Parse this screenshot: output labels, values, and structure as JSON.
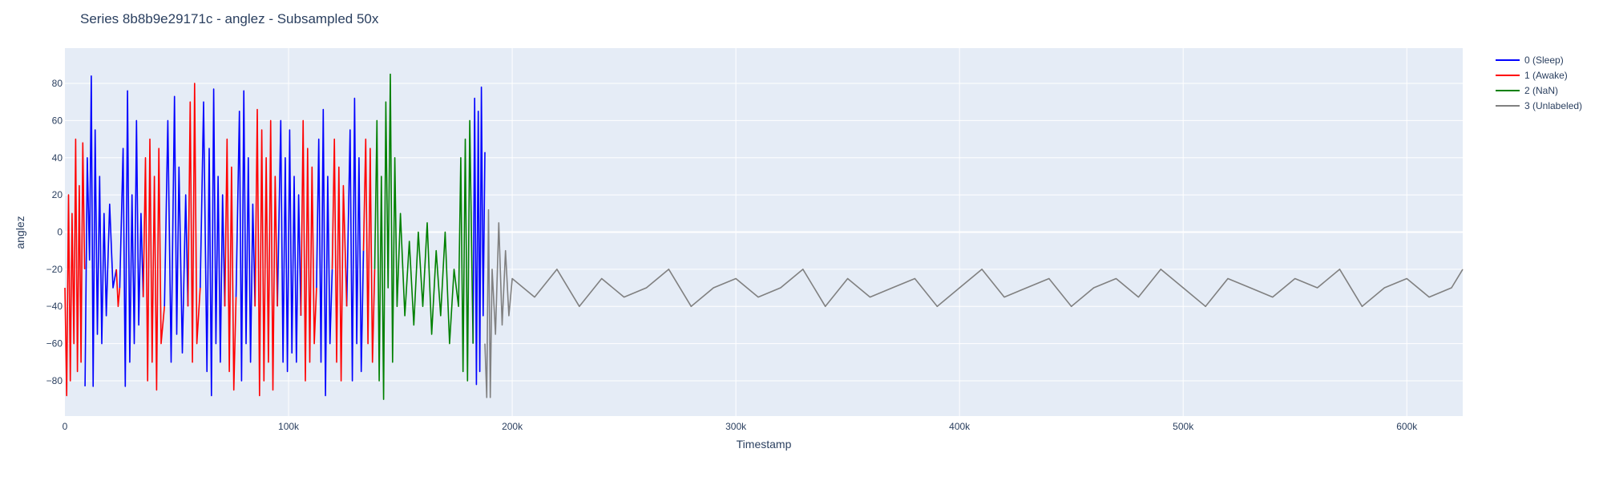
{
  "chart_data": {
    "type": "line",
    "title": "Series 8b8b9e29171c - anglez - Subsampled 50x",
    "xlabel": "Timestamp",
    "ylabel": "anglez",
    "xlim": [
      0,
      625000
    ],
    "ylim": [
      -99,
      99
    ],
    "x_ticks": [
      0,
      100000,
      200000,
      300000,
      400000,
      500000,
      600000
    ],
    "x_tick_labels": [
      "0",
      "100k",
      "200k",
      "300k",
      "400k",
      "500k",
      "600k"
    ],
    "y_ticks": [
      -80,
      -60,
      -40,
      -20,
      0,
      20,
      40,
      60,
      80
    ],
    "y_tick_labels": [
      "−80",
      "−60",
      "−40",
      "−20",
      "0",
      "20",
      "40",
      "60",
      "80"
    ],
    "grid": true,
    "legend_position": "top-right",
    "series": [
      {
        "name": "0 (Sleep)",
        "color": "#0000ff",
        "segments": [
          {
            "x": [
              9000,
              10000,
              11000,
              11800,
              12600,
              13500,
              14500,
              15500,
              16500,
              17500,
              18500,
              20000,
              21500,
              23000
            ],
            "y": [
              -83,
              40,
              -15,
              84,
              -83,
              55,
              -55,
              30,
              -60,
              10,
              -45,
              15,
              -30,
              -20
            ]
          },
          {
            "x": [
              24500,
              26000,
              27000,
              28000,
              29000,
              30000,
              31000,
              32000,
              33000,
              34000,
              35000
            ],
            "y": [
              -30,
              45,
              -83,
              76,
              -70,
              20,
              -60,
              60,
              -50,
              10,
              -35
            ]
          },
          {
            "x": [
              44500,
              46000,
              47500,
              49000,
              50000,
              51000,
              52500,
              54000,
              55000
            ],
            "y": [
              -40,
              60,
              -70,
              73,
              -55,
              35,
              -65,
              20,
              -40
            ]
          },
          {
            "x": [
              60500,
              62000,
              63500,
              64500,
              65500,
              66500,
              67500,
              68500,
              69500,
              70500,
              71500
            ],
            "y": [
              -30,
              70,
              -75,
              45,
              -88,
              77,
              -60,
              30,
              -70,
              20,
              -40
            ]
          },
          {
            "x": [
              76500,
              78000,
              79000,
              80000,
              81000,
              82000,
              83000,
              84000,
              85000
            ],
            "y": [
              -35,
              65,
              -80,
              76,
              -60,
              40,
              -70,
              15,
              -40
            ]
          },
          {
            "x": [
              95000,
              96500,
              97500,
              98500,
              99500,
              100500,
              101500,
              102500,
              103500,
              104500,
              105500
            ],
            "y": [
              -40,
              60,
              -70,
              40,
              -75,
              55,
              -65,
              30,
              -70,
              20,
              -45
            ]
          },
          {
            "x": [
              112500,
              113500,
              114500,
              115500,
              116500,
              117500,
              118500,
              119500
            ],
            "y": [
              -30,
              50,
              -70,
              66,
              -88,
              30,
              -60,
              -20
            ]
          },
          {
            "x": [
              126000,
              127500,
              128500,
              129500,
              130500,
              131500,
              132500,
              133500
            ],
            "y": [
              -40,
              55,
              -80,
              72,
              -60,
              40,
              -75,
              -10
            ]
          },
          {
            "x": [
              182500,
              183200,
              184000,
              184800,
              185500,
              186200,
              187000,
              187800
            ],
            "y": [
              -60,
              72,
              -82,
              65,
              -75,
              78,
              -45,
              43
            ]
          }
        ]
      },
      {
        "name": "1 (Awake)",
        "color": "#ff0000",
        "segments": [
          {
            "x": [
              0,
              800,
              1600,
              2400,
              3200,
              4000,
              4800,
              5600,
              6400,
              7200,
              8000,
              8800
            ],
            "y": [
              -30,
              -88,
              20,
              -80,
              10,
              -60,
              50,
              -75,
              25,
              -70,
              48,
              -20
            ]
          },
          {
            "x": [
              23000,
              23800,
              24500
            ],
            "y": [
              -20,
              -40,
              -30
            ]
          },
          {
            "x": [
              35000,
              36000,
              37000,
              38000,
              39000,
              40000,
              41000,
              42000,
              43000,
              44500
            ],
            "y": [
              -35,
              40,
              -80,
              50,
              -70,
              30,
              -85,
              45,
              -60,
              -40
            ]
          },
          {
            "x": [
              55000,
              56000,
              57000,
              58000,
              59000,
              60500
            ],
            "y": [
              -40,
              70,
              -70,
              80,
              -60,
              -30
            ]
          },
          {
            "x": [
              71500,
              72500,
              73500,
              74500,
              75500,
              76500
            ],
            "y": [
              -40,
              50,
              -75,
              35,
              -85,
              -35
            ]
          },
          {
            "x": [
              85000,
              86000,
              87000,
              88000,
              89000,
              90000,
              91000,
              92000,
              93000,
              94000,
              95000
            ],
            "y": [
              -40,
              66,
              -88,
              55,
              -80,
              40,
              -70,
              60,
              -85,
              30,
              -40
            ]
          },
          {
            "x": [
              105500,
              106500,
              107500,
              108500,
              109500,
              110500,
              111500,
              112500
            ],
            "y": [
              -45,
              60,
              -80,
              45,
              -70,
              35,
              -60,
              -30
            ]
          },
          {
            "x": [
              119500,
              120500,
              121500,
              122500,
              123500,
              124500,
              126000
            ],
            "y": [
              -20,
              50,
              -70,
              35,
              -80,
              25,
              -40
            ]
          },
          {
            "x": [
              133500,
              134500,
              135500,
              136500,
              137500,
              138500
            ],
            "y": [
              -10,
              50,
              -60,
              45,
              -70,
              -20
            ]
          }
        ]
      },
      {
        "name": "2 (NaN)",
        "color": "#008000",
        "segments": [
          {
            "x": [
              138500,
              139500,
              140500,
              141500,
              142500,
              143500,
              144500,
              145500,
              146500,
              147500,
              148500,
              150000,
              152000,
              154000,
              156000,
              158000,
              160000,
              162000,
              164000,
              166000,
              168000,
              170000,
              172000,
              174000,
              176000,
              177000,
              178000,
              179000,
              180000,
              181000,
              182500
            ],
            "y": [
              -20,
              60,
              -80,
              30,
              -90,
              70,
              -30,
              85,
              -70,
              40,
              -40,
              10,
              -45,
              -5,
              -50,
              0,
              -40,
              5,
              -55,
              -10,
              -45,
              0,
              -60,
              -20,
              -40,
              40,
              -75,
              50,
              -80,
              60,
              -60
            ]
          }
        ]
      },
      {
        "name": "3 (Unlabeled)",
        "color": "#808080",
        "segments": [
          {
            "x": [
              187800,
              188600,
              189400,
              190200,
              191000,
              192500,
              194000,
              195500,
              197000,
              198500,
              200000,
              210000,
              220000,
              230000,
              240000,
              250000,
              260000,
              270000,
              280000,
              290000,
              300000,
              310000,
              320000,
              330000,
              340000,
              350000,
              360000,
              370000,
              380000,
              390000,
              400000,
              410000,
              420000,
              430000,
              440000,
              450000,
              460000,
              470000,
              480000,
              490000,
              500000,
              510000,
              520000,
              530000,
              540000,
              550000,
              560000,
              570000,
              580000,
              590000,
              600000,
              610000,
              620000,
              625000
            ],
            "y": [
              -60,
              -89,
              12,
              -89,
              -20,
              -55,
              5,
              -50,
              -10,
              -45,
              -25,
              -35,
              -20,
              -40,
              -25,
              -35,
              -30,
              -20,
              -40,
              -30,
              -25,
              -35,
              -30,
              -20,
              -40,
              -25,
              -35,
              -30,
              -25,
              -40,
              -30,
              -20,
              -35,
              -30,
              -25,
              -40,
              -30,
              -25,
              -35,
              -20,
              -30,
              -40,
              -25,
              -30,
              -35,
              -25,
              -30,
              -20,
              -40,
              -30,
              -25,
              -35,
              -30,
              -20
            ]
          }
        ]
      }
    ]
  }
}
